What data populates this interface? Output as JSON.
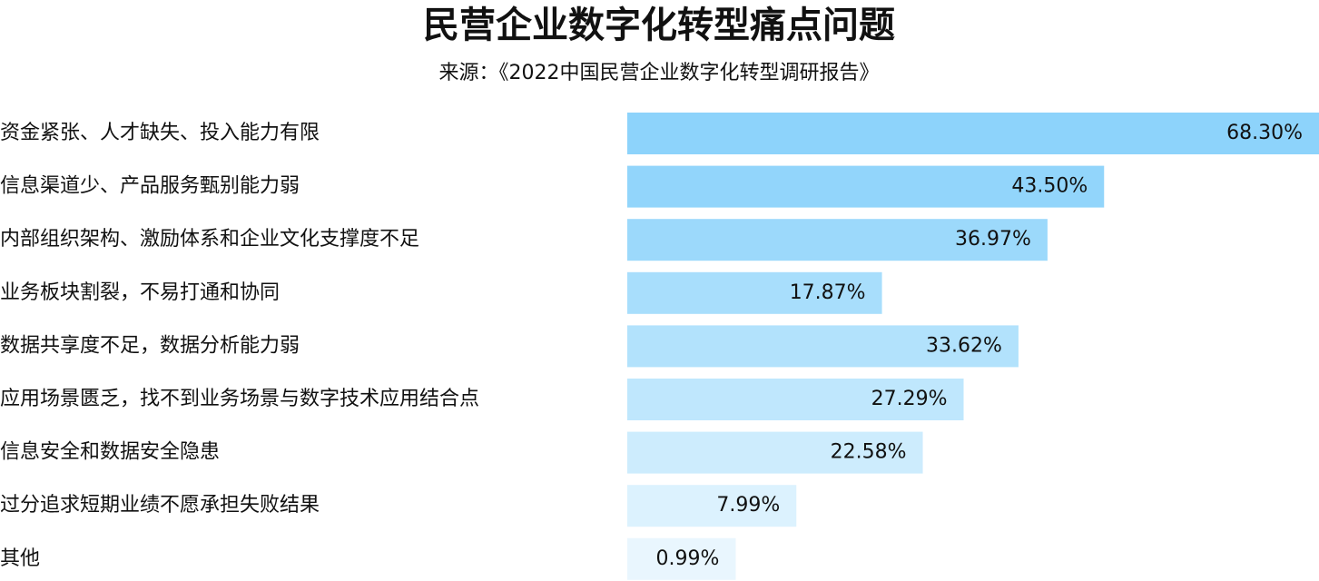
{
  "chart_data": {
    "type": "bar",
    "orientation": "horizontal",
    "title": "民营企业数字化转型痛点问题",
    "subtitle": "来源：《2022中国民营企业数字化转型调研报告》",
    "categories": [
      "资金紧张、人才缺失、投入能力有限",
      "信息渠道少、产品服务甄别能力弱",
      "内部组织架构、激励体系和企业文化支撑度不足",
      "业务板块割裂，不易打通和协同",
      "数据共享度不足，数据分析能力弱",
      "应用场景匮乏，找不到业务场景与数字技术应用结合点",
      "信息安全和数据安全隐患",
      "过分追求短期业绩不愿承担失败结果",
      "其他"
    ],
    "values": [
      68.3,
      43.5,
      36.97,
      17.87,
      33.62,
      27.29,
      22.58,
      7.99,
      0.99
    ],
    "value_labels": [
      "68.30%",
      "43.50%",
      "36.97%",
      "17.87%",
      "33.62%",
      "27.29%",
      "22.58%",
      "7.99%",
      "0.99%"
    ],
    "colors": [
      "#8dd3fb",
      "#92d5fb",
      "#9cd9fb",
      "#a8defc",
      "#b2e2fc",
      "#bfe7fd",
      "#cdecfd",
      "#dcf2fe",
      "#e9f6fe"
    ]
  }
}
